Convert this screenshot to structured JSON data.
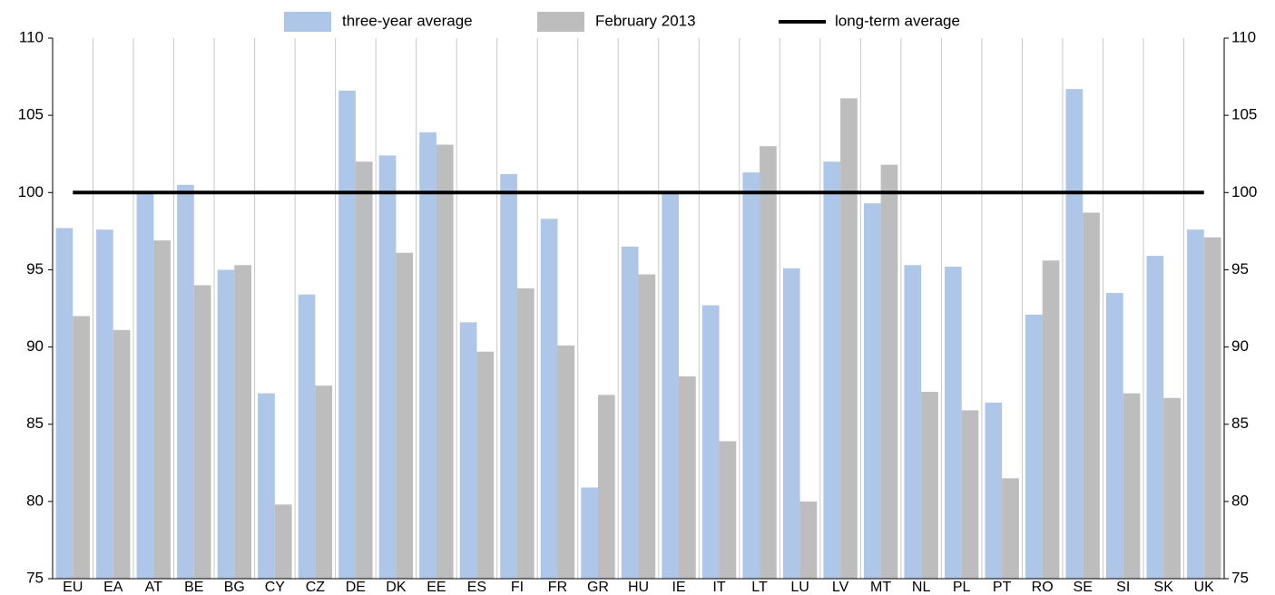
{
  "chart_data": {
    "type": "bar",
    "categories": [
      "EU",
      "EA",
      "AT",
      "BE",
      "BG",
      "CY",
      "CZ",
      "DE",
      "DK",
      "EE",
      "ES",
      "FI",
      "FR",
      "GR",
      "HU",
      "IE",
      "IT",
      "LT",
      "LU",
      "LV",
      "MT",
      "NL",
      "PL",
      "PT",
      "RO",
      "SE",
      "SI",
      "SK",
      "UK"
    ],
    "series": [
      {
        "name": "three-year average",
        "color": "#aec6e8",
        "type": "bar",
        "values": [
          97.7,
          97.6,
          100.0,
          100.5,
          95.0,
          87.0,
          93.4,
          106.6,
          102.4,
          103.9,
          91.6,
          101.2,
          98.3,
          80.9,
          96.5,
          100.0,
          92.7,
          101.3,
          95.1,
          102.0,
          99.3,
          95.3,
          95.2,
          86.4,
          92.1,
          106.7,
          93.5,
          95.9,
          97.6
        ]
      },
      {
        "name": "February 2013",
        "color": "#bdbdbd",
        "type": "bar",
        "values": [
          92.0,
          91.1,
          96.9,
          94.0,
          95.3,
          79.8,
          87.5,
          102.0,
          96.1,
          103.1,
          89.7,
          93.8,
          90.1,
          86.9,
          94.7,
          88.1,
          83.9,
          103.0,
          80.0,
          106.1,
          101.8,
          87.1,
          85.9,
          81.5,
          95.6,
          98.7,
          87.0,
          86.7,
          97.1
        ]
      },
      {
        "name": "long-term average",
        "color": "#000000",
        "type": "line",
        "values": [
          100,
          100,
          100,
          100,
          100,
          100,
          100,
          100,
          100,
          100,
          100,
          100,
          100,
          100,
          100,
          100,
          100,
          100,
          100,
          100,
          100,
          100,
          100,
          100,
          100,
          100,
          100,
          100,
          100
        ]
      }
    ],
    "ylim": [
      75,
      110
    ],
    "yticks": [
      75,
      80,
      85,
      90,
      95,
      100,
      105,
      110
    ],
    "y2lim": [
      75,
      110
    ],
    "y2ticks": [
      75,
      80,
      85,
      90,
      95,
      100,
      105,
      110
    ],
    "grid": true,
    "legend": "top"
  }
}
